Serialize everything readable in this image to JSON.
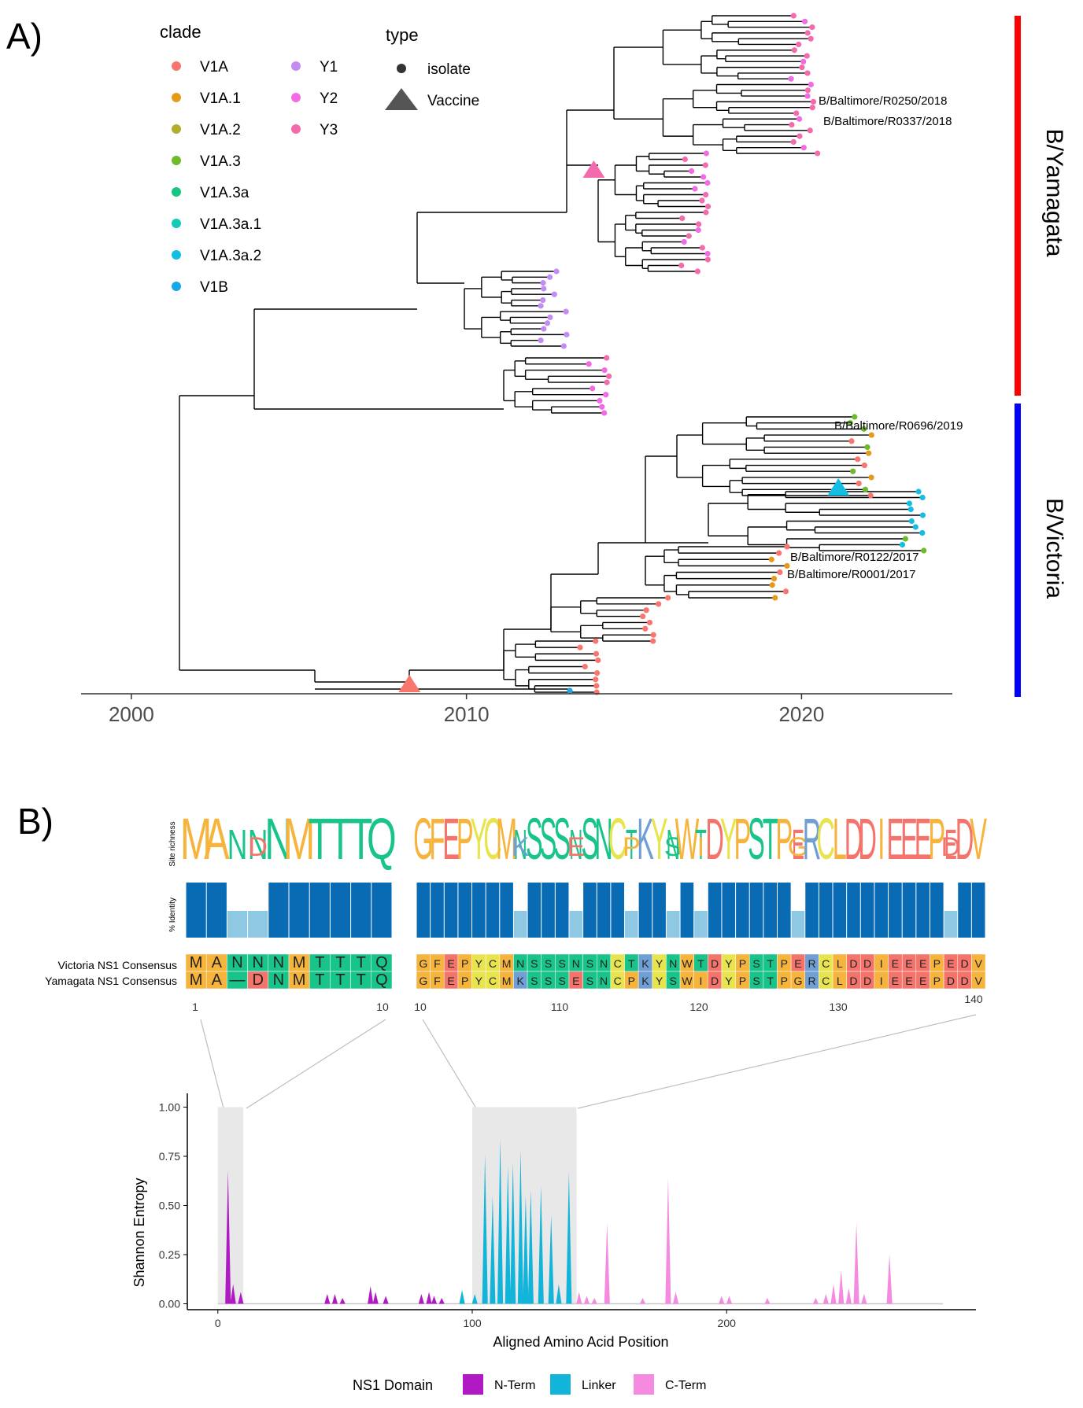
{
  "panels": {
    "a_label": "A)",
    "b_label": "B)"
  },
  "legend": {
    "clade_title": "clade",
    "type_title": "type",
    "clades": [
      {
        "name": "V1A",
        "color": "#F8766D"
      },
      {
        "name": "V1A.1",
        "color": "#E59A1C"
      },
      {
        "name": "V1A.2",
        "color": "#B3AD30"
      },
      {
        "name": "V1A.3",
        "color": "#6DBA2B"
      },
      {
        "name": "V1A.3a",
        "color": "#19C482"
      },
      {
        "name": "V1A.3a.1",
        "color": "#17C9B6"
      },
      {
        "name": "V1A.3a.2",
        "color": "#14BEE3"
      },
      {
        "name": "V1B",
        "color": "#1AA7E8"
      },
      {
        "name": "Y1",
        "color": "#C38CF2"
      },
      {
        "name": "Y2",
        "color": "#F26BE4"
      },
      {
        "name": "Y3",
        "color": "#F36BAC"
      }
    ],
    "types": [
      {
        "name": "isolate",
        "icon": "circle"
      },
      {
        "name": "Vaccine",
        "icon": "triangle"
      }
    ]
  },
  "lineages": {
    "yamagata": "B/Yamagata",
    "victoria": "B/Victoria",
    "yamagata_color": "#ff0000",
    "victoria_color": "#0000ff"
  },
  "tip_labels": [
    "B/Baltimore/R0250/2018",
    "B/Baltimore/R0337/2018",
    "B/Baltimore/R0696/2019",
    "B/Baltimore/R0122/2017",
    "B/Baltimore/R0001/2017"
  ],
  "chart_data": [
    {
      "type": "phylogenetic-tree",
      "title": "",
      "xlabel": "",
      "x_ticks": [
        2000,
        2010,
        2020
      ],
      "xlim": [
        1998.5,
        2024.5
      ],
      "clades": [
        "Y1",
        "Y2",
        "Y3",
        "V1A",
        "V1A.1",
        "V1A.3",
        "V1A.3a.2",
        "V1B"
      ],
      "vaccine_years": [
        2008.3,
        2013.8,
        2021.1
      ]
    },
    {
      "type": "sequence-logo",
      "row_labels": [
        "Site richness",
        "% Identity"
      ],
      "sequence_names": [
        "Victoria NS1 Consensus",
        "Yamagata NS1 Consensus"
      ],
      "victoria_left": [
        "M",
        "A",
        "N",
        "N",
        "N",
        "M",
        "T",
        "T",
        "T",
        "Q"
      ],
      "yamagata_left": [
        "M",
        "A",
        "-",
        "D",
        "N",
        "M",
        "T",
        "T",
        "T",
        "Q"
      ],
      "victoria_right": [
        "G",
        "F",
        "E",
        "P",
        "Y",
        "C",
        "M",
        "N",
        "S",
        "S",
        "S",
        "N",
        "S",
        "N",
        "C",
        "T",
        "K",
        "Y",
        "N",
        "W",
        "T",
        "D",
        "Y",
        "P",
        "S",
        "T",
        "P",
        "E",
        "R",
        "C",
        "L",
        "D",
        "D",
        "I",
        "E",
        "E",
        "E",
        "P",
        "E",
        "D",
        "V"
      ],
      "yamagata_right": [
        "G",
        "F",
        "E",
        "P",
        "Y",
        "C",
        "M",
        "K",
        "S",
        "S",
        "S",
        "E",
        "S",
        "N",
        "C",
        "P",
        "K",
        "Y",
        "S",
        "W",
        "I",
        "D",
        "Y",
        "P",
        "S",
        "T",
        "P",
        "G",
        "R",
        "C",
        "L",
        "D",
        "D",
        "I",
        "E",
        "E",
        "E",
        "P",
        "D",
        "D",
        "V"
      ],
      "left_ticks": [
        "1",
        "10"
      ],
      "right_ticks": [
        "10",
        "110",
        "120",
        "130",
        "140"
      ]
    },
    {
      "type": "area",
      "title": "",
      "xlabel": "Aligned Amino Acid Position",
      "ylabel": "Shannon Entropy",
      "x_ticks": [
        0,
        100,
        200
      ],
      "y_ticks": [
        "0.00",
        "0.25",
        "0.50",
        "0.75",
        "1.00"
      ],
      "xlim": [
        -12,
        298
      ],
      "ylim": [
        -0.03,
        1.05
      ],
      "highlight_ranges": [
        [
          1,
          10
        ],
        [
          101,
          141
        ]
      ],
      "legend_title": "NS1 Domain",
      "series": [
        {
          "name": "N-Term",
          "color": "#B01AC4",
          "x": [
            4,
            6,
            9,
            43,
            46,
            49,
            60,
            62,
            66,
            80,
            83,
            85,
            88
          ],
          "values": [
            0.68,
            0.1,
            0.06,
            0.05,
            0.05,
            0.03,
            0.09,
            0.06,
            0.04,
            0.05,
            0.06,
            0.04,
            0.03
          ]
        },
        {
          "name": "Linker",
          "color": "#12B4D9",
          "x": [
            96,
            101,
            105,
            108,
            111,
            114,
            116,
            119,
            121,
            123,
            127,
            131,
            134,
            138
          ],
          "values": [
            0.07,
            0.05,
            0.76,
            0.55,
            0.84,
            0.7,
            0.72,
            0.78,
            0.55,
            0.58,
            0.6,
            0.45,
            0.1,
            0.67
          ]
        },
        {
          "name": "C-Term",
          "color": "#F58BE0",
          "x": [
            142,
            145,
            148,
            153,
            167,
            177,
            180,
            198,
            201,
            216,
            235,
            239,
            242,
            245,
            248,
            251,
            254,
            264
          ],
          "values": [
            0.06,
            0.04,
            0.03,
            0.41,
            0.03,
            0.64,
            0.06,
            0.04,
            0.04,
            0.03,
            0.03,
            0.05,
            0.1,
            0.17,
            0.08,
            0.41,
            0.05,
            0.25
          ]
        }
      ]
    }
  ]
}
